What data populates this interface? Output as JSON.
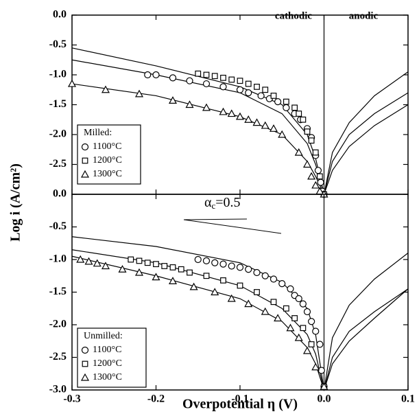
{
  "chart_data": [
    {
      "type": "scatter",
      "ylabel": "Log i (A/cm²)",
      "region_labels": [
        "cathodic",
        "anodic"
      ],
      "legend_title": "Milled:",
      "ylim": [
        -3,
        0
      ],
      "yticks": [
        {
          "value": 0,
          "label": "0.0"
        },
        -0.5,
        {
          "value": -1,
          "label": "-1.0"
        },
        -1.5,
        {
          "value": -2,
          "label": "-2.0"
        },
        -2.5
      ],
      "series": [
        {
          "name": "1100°C",
          "marker": "circle",
          "x": [
            -0.21,
            -0.2,
            -0.18,
            -0.16,
            -0.14,
            -0.12,
            -0.1,
            -0.09,
            -0.075,
            -0.065,
            -0.055,
            -0.045,
            -0.035,
            -0.028,
            -0.02,
            -0.015,
            -0.01,
            -0.007,
            -0.004,
            -0.002,
            0
          ],
          "values": [
            -1.0,
            -1.0,
            -1.05,
            -1.1,
            -1.15,
            -1.2,
            -1.25,
            -1.3,
            -1.35,
            -1.4,
            -1.45,
            -1.55,
            -1.65,
            -1.75,
            -1.9,
            -2.05,
            -2.35,
            -2.6,
            -2.8,
            -2.95,
            -3.0
          ]
        },
        {
          "name": "1200°C",
          "marker": "square",
          "x": [
            -0.15,
            -0.14,
            -0.13,
            -0.12,
            -0.11,
            -0.1,
            -0.09,
            -0.08,
            -0.07,
            -0.06,
            -0.045,
            -0.035,
            -0.03,
            -0.025,
            -0.02,
            -0.015,
            -0.01,
            -0.005,
            0
          ],
          "values": [
            -0.98,
            -1.0,
            -1.02,
            -1.05,
            -1.08,
            -1.1,
            -1.15,
            -1.2,
            -1.25,
            -1.35,
            -1.45,
            -1.55,
            -1.65,
            -1.75,
            -1.95,
            -2.1,
            -2.3,
            -2.7,
            -3.0
          ]
        },
        {
          "name": "1300°C",
          "marker": "triangle",
          "x": [
            -0.3,
            -0.26,
            -0.22,
            -0.18,
            -0.16,
            -0.14,
            -0.12,
            -0.11,
            -0.1,
            -0.09,
            -0.08,
            -0.07,
            -0.06,
            -0.05,
            -0.03,
            -0.02,
            -0.015,
            -0.01,
            -0.005,
            0
          ],
          "values": [
            -1.15,
            -1.25,
            -1.32,
            -1.43,
            -1.5,
            -1.55,
            -1.62,
            -1.65,
            -1.7,
            -1.75,
            -1.8,
            -1.85,
            -1.9,
            -2.0,
            -2.3,
            -2.5,
            -2.7,
            -2.85,
            -2.95,
            -3.0
          ]
        }
      ],
      "fits": [
        {
          "x": [
            -0.3,
            -0.2,
            -0.1,
            -0.05,
            -0.02,
            -0.01,
            0,
            0.01,
            0.03,
            0.06,
            0.1
          ],
          "values": [
            -0.55,
            -0.85,
            -1.2,
            -1.5,
            -2.0,
            -2.4,
            -3.0,
            -2.3,
            -1.8,
            -1.35,
            -0.95
          ]
        },
        {
          "x": [
            -0.3,
            -0.2,
            -0.1,
            -0.05,
            -0.02,
            -0.01,
            0,
            0.01,
            0.03,
            0.06,
            0.1
          ],
          "values": [
            -0.75,
            -1.0,
            -1.3,
            -1.65,
            -2.15,
            -2.5,
            -3.0,
            -2.45,
            -2.0,
            -1.65,
            -1.3
          ]
        },
        {
          "x": [
            -0.3,
            -0.2,
            -0.1,
            -0.05,
            -0.02,
            -0.01,
            0,
            0.01,
            0.03,
            0.06,
            0.1
          ],
          "values": [
            -1.15,
            -1.35,
            -1.7,
            -2.0,
            -2.45,
            -2.7,
            -3.0,
            -2.6,
            -2.2,
            -1.85,
            -1.5
          ]
        }
      ]
    },
    {
      "type": "scatter",
      "xlabel": "Overpotential η (V)",
      "annotation": [
        "α",
        "c",
        "=0.5"
      ],
      "legend_title": "Unmilled:",
      "xlim": [
        -0.3,
        0.1
      ],
      "xticks": [
        -0.3,
        -0.2,
        -0.1,
        {
          "value": 0,
          "label": "0.0"
        },
        0.1
      ],
      "ylim": [
        -3,
        0
      ],
      "yticks": [
        {
          "value": 0,
          "label": "0.0"
        },
        -0.5,
        {
          "value": -1,
          "label": "-1.0"
        },
        -1.5,
        {
          "value": -2,
          "label": "-2.0"
        },
        -2.5,
        {
          "value": -3,
          "label": "-3.0"
        }
      ],
      "series": [
        {
          "name": "1100°C",
          "marker": "circle",
          "x": [
            -0.15,
            -0.14,
            -0.13,
            -0.12,
            -0.11,
            -0.1,
            -0.09,
            -0.08,
            -0.07,
            -0.06,
            -0.05,
            -0.04,
            -0.035,
            -0.03,
            -0.025,
            -0.02,
            -0.015,
            -0.01,
            -0.005,
            -0.003,
            0
          ],
          "values": [
            -1.0,
            -1.02,
            -1.05,
            -1.07,
            -1.1,
            -1.12,
            -1.15,
            -1.2,
            -1.25,
            -1.3,
            -1.37,
            -1.45,
            -1.55,
            -1.6,
            -1.68,
            -1.8,
            -1.95,
            -2.1,
            -2.3,
            -2.7,
            -2.95
          ]
        },
        {
          "name": "1200°C",
          "marker": "square",
          "x": [
            -0.23,
            -0.22,
            -0.21,
            -0.2,
            -0.19,
            -0.18,
            -0.17,
            -0.16,
            -0.14,
            -0.12,
            -0.1,
            -0.08,
            -0.06,
            -0.045,
            -0.035,
            -0.025,
            -0.015,
            0
          ],
          "values": [
            -1.0,
            -1.02,
            -1.05,
            -1.07,
            -1.1,
            -1.12,
            -1.15,
            -1.2,
            -1.25,
            -1.32,
            -1.4,
            -1.5,
            -1.65,
            -1.75,
            -1.9,
            -2.05,
            -2.3,
            -2.95
          ]
        },
        {
          "name": "1300°C",
          "marker": "triangle",
          "x": [
            -0.29,
            -0.28,
            -0.27,
            -0.26,
            -0.24,
            -0.22,
            -0.2,
            -0.18,
            -0.155,
            -0.13,
            -0.11,
            -0.09,
            -0.07,
            -0.055,
            -0.04,
            -0.03,
            -0.02,
            -0.01,
            0
          ],
          "values": [
            -1.0,
            -1.03,
            -1.06,
            -1.1,
            -1.15,
            -1.2,
            -1.27,
            -1.33,
            -1.42,
            -1.5,
            -1.6,
            -1.68,
            -1.8,
            -1.9,
            -2.05,
            -2.2,
            -2.4,
            -2.65,
            -2.95
          ]
        }
      ],
      "fits": [
        {
          "x": [
            -0.3,
            -0.2,
            -0.1,
            -0.05,
            -0.02,
            -0.01,
            0,
            0.01,
            0.03,
            0.06,
            0.1
          ],
          "values": [
            -0.65,
            -0.8,
            -1.05,
            -1.35,
            -1.75,
            -2.15,
            -3.0,
            -2.2,
            -1.7,
            -1.3,
            -0.9
          ]
        },
        {
          "x": [
            -0.3,
            -0.2,
            -0.1,
            -0.05,
            -0.02,
            -0.01,
            0,
            0.01,
            0.03,
            0.06,
            0.1
          ],
          "values": [
            -0.85,
            -1.05,
            -1.4,
            -1.75,
            -2.15,
            -2.45,
            -3.0,
            -2.5,
            -2.1,
            -1.8,
            -1.45
          ]
        },
        {
          "x": [
            -0.3,
            -0.2,
            -0.1,
            -0.05,
            -0.02,
            -0.01,
            0,
            0.01,
            0.03,
            0.06,
            0.1
          ],
          "values": [
            -0.95,
            -1.25,
            -1.6,
            -1.95,
            -2.35,
            -2.6,
            -3.0,
            -2.6,
            -2.25,
            -1.9,
            -1.45
          ]
        }
      ]
    }
  ]
}
